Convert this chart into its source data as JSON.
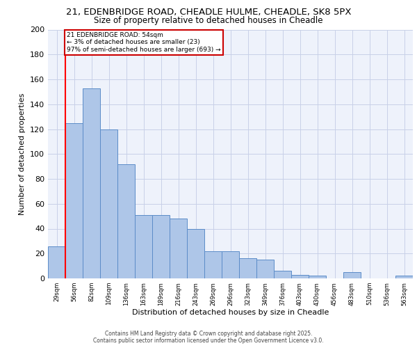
{
  "title_line1": "21, EDENBRIDGE ROAD, CHEADLE HULME, CHEADLE, SK8 5PX",
  "title_line2": "Size of property relative to detached houses in Cheadle",
  "xlabel": "Distribution of detached houses by size in Cheadle",
  "ylabel": "Number of detached properties",
  "categories": [
    "29sqm",
    "56sqm",
    "82sqm",
    "109sqm",
    "136sqm",
    "163sqm",
    "189sqm",
    "216sqm",
    "243sqm",
    "269sqm",
    "296sqm",
    "323sqm",
    "349sqm",
    "376sqm",
    "403sqm",
    "430sqm",
    "456sqm",
    "483sqm",
    "510sqm",
    "536sqm",
    "563sqm"
  ],
  "values": [
    26,
    125,
    153,
    120,
    92,
    51,
    51,
    48,
    40,
    22,
    22,
    16,
    15,
    6,
    3,
    2,
    0,
    5,
    0,
    0,
    2
  ],
  "bar_color": "#aec6e8",
  "bar_edge_color": "#5b8cc8",
  "annotation_line1": "21 EDENBRIDGE ROAD: 54sqm",
  "annotation_line2": "← 3% of detached houses are smaller (23)",
  "annotation_line3": "97% of semi-detached houses are larger (693) →",
  "annotation_box_facecolor": "#ffffff",
  "annotation_box_edgecolor": "#cc0000",
  "red_line_x": 0.5,
  "ylim": [
    0,
    200
  ],
  "yticks": [
    0,
    20,
    40,
    60,
    80,
    100,
    120,
    140,
    160,
    180,
    200
  ],
  "footer_line1": "Contains HM Land Registry data © Crown copyright and database right 2025.",
  "footer_line2": "Contains public sector information licensed under the Open Government Licence v3.0.",
  "bg_color": "#eef2fb",
  "grid_color": "#c8d0e8",
  "title1_fontsize": 9.5,
  "title2_fontsize": 8.5,
  "ylabel_fontsize": 8,
  "xlabel_fontsize": 8,
  "ytick_fontsize": 8,
  "xtick_fontsize": 6,
  "footer_fontsize": 5.5,
  "annot_fontsize": 6.5
}
